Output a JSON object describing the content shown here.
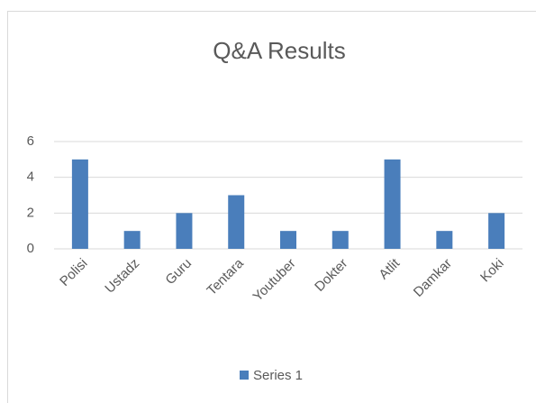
{
  "chart_data": {
    "type": "bar",
    "title": "Q&A Results",
    "categories": [
      "Polisi",
      "Ustadz",
      "Guru",
      "Tentara",
      "Youtuber",
      "Dokter",
      "Atlit",
      "Damkar",
      "Koki"
    ],
    "series": [
      {
        "name": "Series 1",
        "color": "#4a7ebb",
        "values": [
          5,
          1,
          2,
          3,
          1,
          1,
          5,
          1,
          2
        ]
      }
    ],
    "ylim": [
      0,
      6
    ],
    "yticks": [
      0,
      2,
      4,
      6
    ],
    "grid": true,
    "legend": "bottom"
  }
}
